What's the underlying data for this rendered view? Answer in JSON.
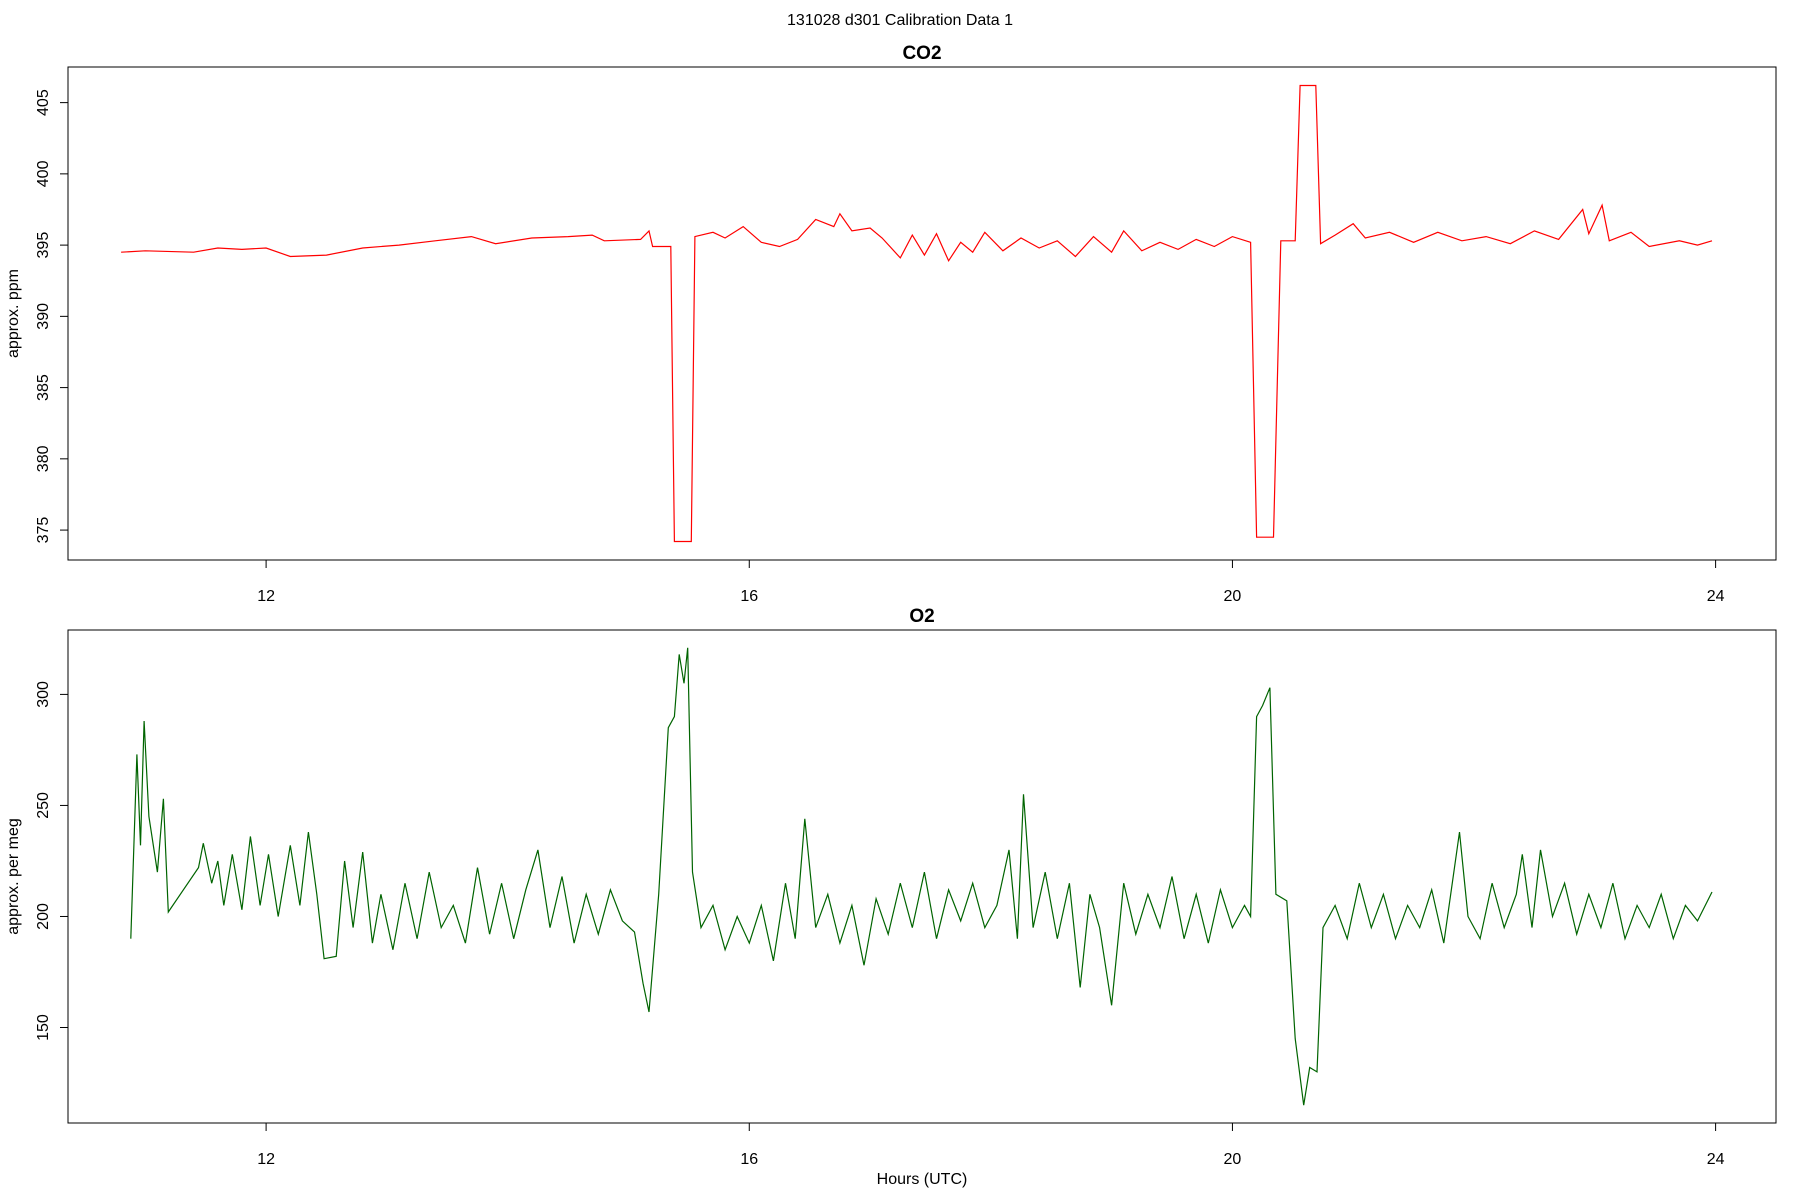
{
  "title": "131028   d301   Calibration Data 1",
  "chart_data": [
    {
      "type": "line",
      "title": "CO2",
      "ylabel": "approx. ppm",
      "color": "#ff0000",
      "x": [
        10.8,
        11.0,
        11.4,
        11.6,
        11.8,
        12.0,
        12.2,
        12.5,
        12.8,
        13.1,
        13.4,
        13.7,
        13.9,
        14.2,
        14.5,
        14.7,
        14.8,
        15.1,
        15.17,
        15.2,
        15.35,
        15.38,
        15.52,
        15.55,
        15.7,
        15.8,
        15.95,
        16.1,
        16.25,
        16.4,
        16.55,
        16.7,
        16.75,
        16.85,
        17.0,
        17.1,
        17.25,
        17.35,
        17.45,
        17.55,
        17.65,
        17.75,
        17.85,
        17.95,
        18.1,
        18.25,
        18.4,
        18.55,
        18.7,
        18.85,
        19.0,
        19.1,
        19.25,
        19.4,
        19.55,
        19.7,
        19.85,
        20.0,
        20.15,
        20.2,
        20.34,
        20.4,
        20.52,
        20.56,
        20.69,
        20.73,
        20.85,
        21.0,
        21.1,
        21.3,
        21.5,
        21.7,
        21.9,
        22.1,
        22.3,
        22.5,
        22.7,
        22.9,
        22.95,
        23.06,
        23.12,
        23.3,
        23.45,
        23.7,
        23.85,
        23.97
      ],
      "values": [
        394.5,
        394.6,
        394.5,
        394.8,
        394.7,
        394.8,
        394.2,
        394.3,
        394.8,
        395.0,
        395.3,
        395.6,
        395.1,
        395.5,
        395.6,
        395.7,
        395.3,
        395.4,
        396.0,
        394.9,
        394.9,
        374.2,
        374.2,
        395.6,
        395.9,
        395.5,
        396.3,
        395.2,
        394.9,
        395.4,
        396.8,
        396.3,
        397.2,
        396.0,
        396.2,
        395.5,
        394.1,
        395.7,
        394.3,
        395.8,
        393.9,
        395.2,
        394.5,
        395.9,
        394.6,
        395.5,
        394.8,
        395.3,
        394.2,
        395.6,
        394.5,
        396.0,
        394.6,
        395.2,
        394.7,
        395.4,
        394.9,
        395.6,
        395.2,
        374.5,
        374.5,
        395.3,
        395.3,
        406.2,
        406.2,
        395.1,
        395.7,
        396.5,
        395.5,
        395.9,
        395.2,
        395.9,
        395.3,
        395.6,
        395.1,
        396.0,
        395.4,
        397.5,
        395.8,
        397.8,
        395.3,
        395.9,
        394.9,
        395.3,
        395.0,
        395.3
      ],
      "xlim": [
        10.36,
        24.5
      ],
      "ylim": [
        372.9,
        407.5
      ],
      "xticks": [
        12,
        16,
        20,
        24
      ],
      "yticks": [
        375,
        380,
        385,
        390,
        395,
        400,
        405
      ]
    },
    {
      "type": "line",
      "title": "O2",
      "ylabel": "approx. per meg",
      "xlabel": "Hours (UTC)",
      "color": "#006400",
      "x": [
        10.88,
        10.93,
        10.96,
        10.99,
        11.03,
        11.1,
        11.15,
        11.19,
        11.44,
        11.48,
        11.55,
        11.6,
        11.65,
        11.72,
        11.8,
        11.87,
        11.95,
        12.02,
        12.1,
        12.2,
        12.28,
        12.35,
        12.42,
        12.48,
        12.58,
        12.65,
        12.72,
        12.8,
        12.88,
        12.95,
        13.05,
        13.15,
        13.25,
        13.35,
        13.45,
        13.55,
        13.65,
        13.75,
        13.85,
        13.95,
        14.05,
        14.15,
        14.25,
        14.35,
        14.45,
        14.55,
        14.65,
        14.75,
        14.85,
        14.95,
        15.05,
        15.12,
        15.17,
        15.25,
        15.33,
        15.38,
        15.42,
        15.46,
        15.49,
        15.53,
        15.6,
        15.7,
        15.8,
        15.9,
        16.0,
        16.1,
        16.2,
        16.3,
        16.38,
        16.46,
        16.55,
        16.65,
        16.75,
        16.85,
        16.95,
        17.05,
        17.15,
        17.25,
        17.35,
        17.45,
        17.55,
        17.65,
        17.75,
        17.85,
        17.95,
        18.05,
        18.15,
        18.22,
        18.27,
        18.35,
        18.45,
        18.55,
        18.65,
        18.74,
        18.82,
        18.9,
        19.0,
        19.1,
        19.2,
        19.3,
        19.4,
        19.5,
        19.6,
        19.7,
        19.8,
        19.9,
        20.0,
        20.1,
        20.15,
        20.2,
        20.25,
        20.31,
        20.36,
        20.45,
        20.52,
        20.59,
        20.64,
        20.7,
        20.75,
        20.85,
        20.95,
        21.05,
        21.15,
        21.25,
        21.35,
        21.45,
        21.55,
        21.65,
        21.75,
        21.88,
        21.95,
        22.05,
        22.15,
        22.25,
        22.35,
        22.4,
        22.48,
        22.55,
        22.65,
        22.75,
        22.85,
        22.95,
        23.05,
        23.15,
        23.25,
        23.35,
        23.45,
        23.55,
        23.65,
        23.75,
        23.85,
        23.97
      ],
      "values": [
        190,
        273,
        232,
        288,
        245,
        220,
        253,
        202,
        222,
        233,
        215,
        225,
        205,
        228,
        203,
        236,
        205,
        228,
        200,
        232,
        205,
        238,
        210,
        181,
        182,
        225,
        195,
        229,
        188,
        210,
        185,
        215,
        190,
        220,
        195,
        205,
        188,
        222,
        192,
        215,
        190,
        212,
        230,
        195,
        218,
        188,
        210,
        192,
        212,
        198,
        193,
        170,
        157,
        210,
        285,
        290,
        318,
        305,
        321,
        220,
        195,
        205,
        185,
        200,
        188,
        205,
        180,
        215,
        190,
        244,
        195,
        210,
        188,
        205,
        178,
        208,
        192,
        215,
        195,
        220,
        190,
        212,
        198,
        215,
        195,
        205,
        230,
        190,
        255,
        195,
        220,
        190,
        215,
        168,
        210,
        195,
        160,
        215,
        192,
        210,
        195,
        218,
        190,
        210,
        188,
        212,
        195,
        205,
        200,
        290,
        295,
        303,
        210,
        207,
        145,
        115,
        132,
        130,
        195,
        205,
        190,
        215,
        195,
        210,
        190,
        205,
        195,
        212,
        188,
        238,
        200,
        190,
        215,
        195,
        210,
        228,
        195,
        230,
        200,
        215,
        192,
        210,
        195,
        215,
        190,
        205,
        195,
        210,
        190,
        205,
        198,
        211
      ],
      "xlim": [
        10.36,
        24.5
      ],
      "ylim": [
        107,
        329
      ],
      "xticks": [
        12,
        16,
        20,
        24
      ],
      "yticks": [
        150,
        200,
        250,
        300
      ]
    }
  ]
}
